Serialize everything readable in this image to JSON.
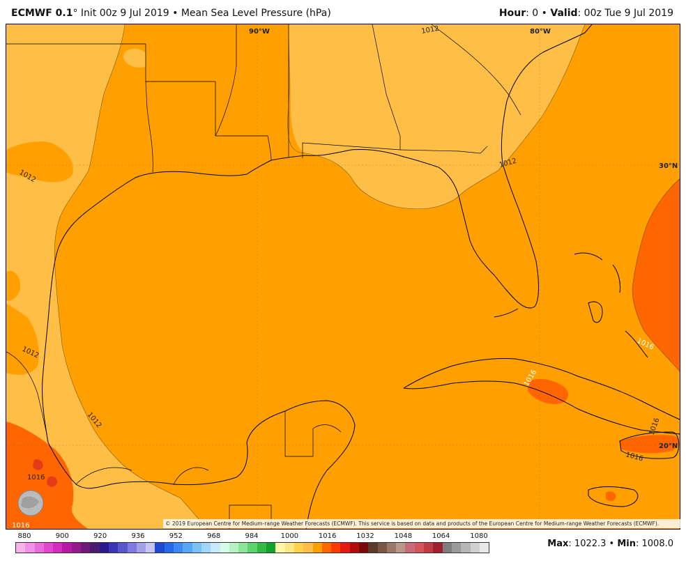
{
  "header": {
    "model": "ECMWF 0.1",
    "degree": "°",
    "init": " Init 00z 9 Jul 2019 • Mean Sea Level Pressure (hPa)",
    "hour_label": "Hour",
    "hour_value": ": 0 • ",
    "valid_label": "Valid",
    "valid_value": ": 00z Tue 9 Jul 2019"
  },
  "map": {
    "gridlines": {
      "lon_90": "90°W",
      "lon_80": "80°W",
      "lat_30": "30°N",
      "lat_20": "20°N"
    },
    "contours": {
      "c1": "1012",
      "c2": "1012",
      "c3": "1012",
      "c4": "1012",
      "c5": "1012",
      "c6": "1016",
      "c7": "1016",
      "c8": "1016",
      "c9": "1016",
      "c10": "1016",
      "c11": "1016"
    },
    "fill_colors": {
      "band_1008_1012": "#ffbf47",
      "band_1012_1016": "#ffa000",
      "band_1016_1020": "#ff6600",
      "band_1020_1024": "#e43a17"
    },
    "copyright": "© 2019 European Centre for Medium-range Weather Forecasts (ECMWF). This service is based on data and products of the European Centre for Medium-range Weather Forecasts (ECMWF).",
    "logo_text": "WEATHERBELL"
  },
  "legend": {
    "labels": [
      "880",
      "900",
      "920",
      "936",
      "952",
      "968",
      "984",
      "1000",
      "1016",
      "1032",
      "1048",
      "1064",
      "1080"
    ],
    "colors": [
      "#f7b2ee",
      "#f28fe6",
      "#ec6bdc",
      "#e148ce",
      "#d42bc0",
      "#b81aa5",
      "#951a8c",
      "#6f1a78",
      "#4a1a6e",
      "#2a1a8c",
      "#3a35b8",
      "#5a56d0",
      "#7e7ae0",
      "#a3a0ea",
      "#c6c4f2",
      "#1c48d4",
      "#2868ec",
      "#3c88f4",
      "#5aa6f6",
      "#7cc0f8",
      "#a0d6fa",
      "#c6eafc",
      "#d8fae8",
      "#b6f2c2",
      "#8ce69a",
      "#5cd46e",
      "#30bc44",
      "#14a02c",
      "#fff6a8",
      "#ffe680",
      "#ffd048",
      "#ffbf47",
      "#ffa000",
      "#ff6600",
      "#ff3a00",
      "#e41a10",
      "#b40a0a",
      "#7a0a0a",
      "#5a3a2a",
      "#7a5646",
      "#9a7868",
      "#b89888",
      "#c86a78",
      "#d4545e",
      "#c23a44",
      "#a02030",
      "#7e7e7e",
      "#9a9a9a",
      "#b6b6b6",
      "#d0d0d0",
      "#e8e8e8"
    ]
  },
  "stats": {
    "max_label": "Max",
    "max_value": ": 1022.3 • ",
    "min_label": "Min",
    "min_value": ": 1008.0"
  }
}
